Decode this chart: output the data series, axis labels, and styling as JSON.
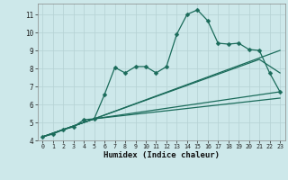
{
  "xlabel": "Humidex (Indice chaleur)",
  "bg_color": "#cde8ea",
  "grid_color": "#b8d4d6",
  "line_color": "#1a6b5a",
  "xlim": [
    -0.5,
    23.5
  ],
  "ylim": [
    4.0,
    11.6
  ],
  "xticks": [
    0,
    1,
    2,
    3,
    4,
    5,
    6,
    7,
    8,
    9,
    10,
    11,
    12,
    13,
    14,
    15,
    16,
    17,
    18,
    19,
    20,
    21,
    22,
    23
  ],
  "yticks": [
    4,
    5,
    6,
    7,
    8,
    9,
    10,
    11
  ],
  "line1_x": [
    0,
    1,
    2,
    3,
    4,
    5,
    6,
    7,
    8,
    9,
    10,
    11,
    12,
    13,
    14,
    15,
    16,
    17,
    18,
    19,
    20,
    21,
    22,
    23
  ],
  "line1_y": [
    4.2,
    4.35,
    4.6,
    4.75,
    5.15,
    5.2,
    6.55,
    8.05,
    7.75,
    8.1,
    8.1,
    7.75,
    8.1,
    9.9,
    11.0,
    11.25,
    10.65,
    9.4,
    9.35,
    9.4,
    9.05,
    9.0,
    7.75,
    6.7
  ],
  "line2_x": [
    0,
    5,
    23
  ],
  "line2_y": [
    4.2,
    5.2,
    9.0
  ],
  "line3_x": [
    0,
    5,
    21,
    23
  ],
  "line3_y": [
    4.2,
    5.2,
    8.5,
    7.75
  ],
  "line4_x": [
    0,
    5,
    23
  ],
  "line4_y": [
    4.2,
    5.2,
    6.7
  ],
  "line5_x": [
    0,
    5,
    23
  ],
  "line5_y": [
    4.2,
    5.2,
    6.35
  ],
  "marker_size": 2.5,
  "line_width": 0.9
}
